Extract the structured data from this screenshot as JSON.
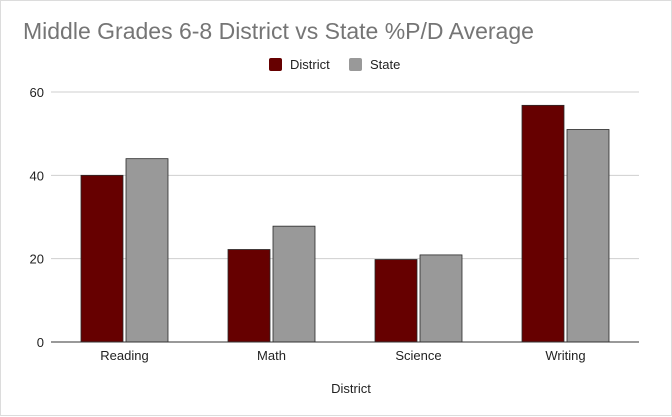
{
  "chart_data": {
    "type": "bar",
    "title": "Middle Grades 6-8 District vs State %P/D Average",
    "xlabel": "District",
    "ylabel": "",
    "categories": [
      "Reading",
      "Math",
      "Science",
      "Writing"
    ],
    "series": [
      {
        "name": "District",
        "color": "#660000",
        "values": [
          40,
          22.2,
          19.8,
          56.8
        ]
      },
      {
        "name": "State",
        "color": "#999999",
        "values": [
          44,
          27.8,
          20.9,
          51
        ]
      }
    ],
    "ylim": [
      0,
      60
    ],
    "yticks": [
      "0",
      "20",
      "40",
      "60"
    ],
    "grid": true,
    "legend_position": "top"
  }
}
